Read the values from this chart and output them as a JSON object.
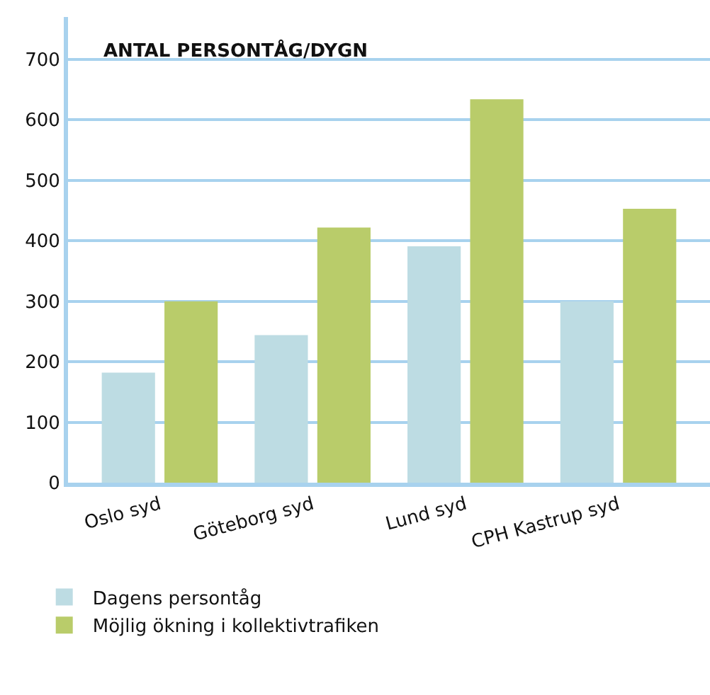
{
  "chart_data": {
    "type": "bar",
    "title": "ANTAL PERSONTÅG/DYGN",
    "categories": [
      "Oslo syd",
      "Göteborg syd",
      "Lund syd",
      "CPH Kastrup syd"
    ],
    "series": [
      {
        "name": "Dagens persontåg",
        "color": "#bddce3",
        "values": [
          182,
          244,
          391,
          300
        ]
      },
      {
        "name": "Möjlig ökning i kollektivtrafiken",
        "color": "#b9cc6a",
        "values": [
          300,
          422,
          634,
          453
        ]
      }
    ],
    "ylim": [
      0,
      770
    ],
    "yticks": [
      0,
      100,
      200,
      300,
      400,
      500,
      600,
      700
    ],
    "grid": "y",
    "legend": "bottom"
  }
}
